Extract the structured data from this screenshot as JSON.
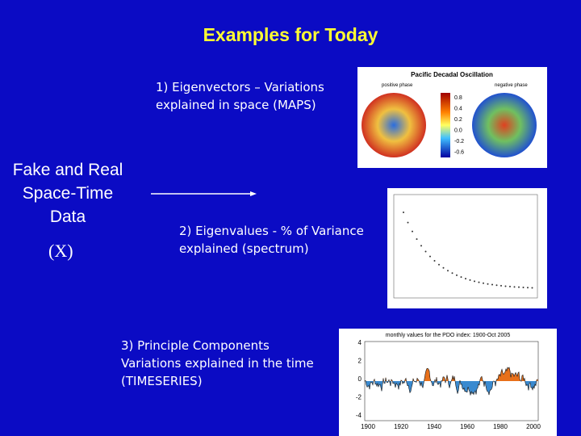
{
  "title": "Examples for Today",
  "source": {
    "lines": [
      "Fake and Real",
      "Space-Time",
      "Data"
    ],
    "symbol": "(X)"
  },
  "items": [
    {
      "lines": [
        "1) Eigenvectors – Variations",
        "explained in space (MAPS)"
      ]
    },
    {
      "lines": [
        "2) Eigenvalues - % of Variance",
        "explained (spectrum)"
      ]
    },
    {
      "lines": [
        "3) Principle Components",
        "Variations explained in the time",
        "(TIMESERIES)"
      ]
    }
  ],
  "maps_figure": {
    "title": "Pacific Decadal Oscillation",
    "left_label": "positive phase",
    "right_label": "negative phase",
    "colorbar": [
      "0.8",
      "0.4",
      "0.2",
      "0.0",
      "-0.2",
      "-0.6"
    ]
  },
  "timeseries_figure": {
    "title": "monthly values for the PDO index: 1900-Oct 2005",
    "x_labels": [
      "1900",
      "1920",
      "1940",
      "1960",
      "1980",
      "2000"
    ],
    "y_labels": [
      "4",
      "2",
      "0",
      "-2",
      "-4"
    ]
  }
}
